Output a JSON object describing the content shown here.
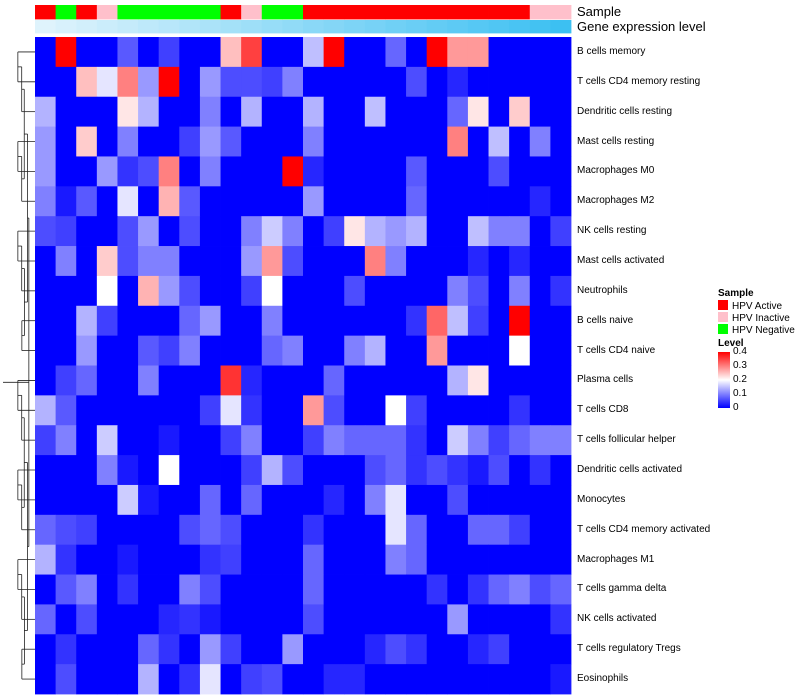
{
  "chart_data": {
    "type": "heatmap",
    "annotation_labels": [
      "Sample",
      "Gene expression level"
    ],
    "sample_groups": [
      "HPV Active",
      "HPV Negative",
      "HPV Active",
      "HPV Inactive",
      "HPV Negative",
      "HPV Negative",
      "HPV Negative",
      "HPV Negative",
      "HPV Negative",
      "HPV Active",
      "HPV Inactive",
      "HPV Negative",
      "HPV Negative",
      "HPV Active",
      "HPV Active",
      "HPV Active",
      "HPV Active",
      "HPV Active",
      "HPV Active",
      "HPV Active",
      "HPV Active",
      "HPV Active",
      "HPV Active",
      "HPV Active",
      "HPV Inactive",
      "HPV Inactive"
    ],
    "expression_level": [
      0.0,
      0.04,
      0.08,
      0.12,
      0.16,
      0.2,
      0.24,
      0.28,
      0.32,
      0.36,
      0.4,
      0.44,
      0.48,
      0.52,
      0.56,
      0.6,
      0.64,
      0.68,
      0.72,
      0.76,
      0.8,
      0.84,
      0.88,
      0.92,
      0.96,
      1.0
    ],
    "rows": [
      "B cells memory",
      "T cells CD4 memory resting",
      "Dendritic cells resting",
      "Mast cells resting",
      "Macrophages M0",
      "Macrophages M2",
      "NK cells resting",
      "Mast cells activated",
      "Neutrophils",
      "B cells naive",
      "T cells CD4 naive",
      "Plasma cells",
      "T cells CD8",
      "T cells follicular helper",
      "Dendritic cells activated",
      "Monocytes",
      "T cells CD4 memory activated",
      "Macrophages M1",
      "T cells gamma delta",
      "NK cells activated",
      "T cells regulatory  Tregs",
      "Eosinophils"
    ],
    "values": [
      [
        0.0,
        0.4,
        0.0,
        0.0,
        0.07,
        0.0,
        0.05,
        0.0,
        0.0,
        0.25,
        0.35,
        0.0,
        0.0,
        0.15,
        0.4,
        0.0,
        0.0,
        0.08,
        0.0,
        0.4,
        0.28,
        0.28,
        0.0,
        0.0,
        0.0,
        0.0
      ],
      [
        0.0,
        0.0,
        0.25,
        0.18,
        0.3,
        0.12,
        0.4,
        0.0,
        0.12,
        0.06,
        0.06,
        0.05,
        0.1,
        0.0,
        0.0,
        0.0,
        0.0,
        0.0,
        0.06,
        0.0,
        0.03,
        0.0,
        0.0,
        0.0,
        0.0,
        0.0
      ],
      [
        0.14,
        0.0,
        0.0,
        0.0,
        0.22,
        0.14,
        0.0,
        0.0,
        0.1,
        0.0,
        0.14,
        0.0,
        0.0,
        0.14,
        0.0,
        0.0,
        0.15,
        0.0,
        0.0,
        0.0,
        0.08,
        0.22,
        0.0,
        0.24,
        0.0,
        0.0
      ],
      [
        0.12,
        0.0,
        0.24,
        0.0,
        0.1,
        0.0,
        0.0,
        0.05,
        0.12,
        0.07,
        0.0,
        0.0,
        0.0,
        0.1,
        0.0,
        0.0,
        0.0,
        0.0,
        0.0,
        0.0,
        0.3,
        0.0,
        0.15,
        0.0,
        0.1,
        0.0
      ],
      [
        0.12,
        0.0,
        0.0,
        0.12,
        0.04,
        0.06,
        0.3,
        0.0,
        0.1,
        0.0,
        0.0,
        0.0,
        0.4,
        0.03,
        0.0,
        0.0,
        0.0,
        0.0,
        0.07,
        0.0,
        0.0,
        0.0,
        0.06,
        0.0,
        0.0,
        0.0
      ],
      [
        0.1,
        0.02,
        0.07,
        0.0,
        0.18,
        0.0,
        0.26,
        0.07,
        0.0,
        0.0,
        0.0,
        0.0,
        0.0,
        0.12,
        0.0,
        0.0,
        0.0,
        0.0,
        0.08,
        0.0,
        0.0,
        0.0,
        0.0,
        0.0,
        0.03,
        0.0
      ],
      [
        0.06,
        0.05,
        0.0,
        0.0,
        0.06,
        0.12,
        0.0,
        0.06,
        0.0,
        0.0,
        0.1,
        0.16,
        0.1,
        0.0,
        0.05,
        0.22,
        0.14,
        0.12,
        0.14,
        0.0,
        0.0,
        0.15,
        0.1,
        0.1,
        0.0,
        0.05
      ],
      [
        0.0,
        0.1,
        0.0,
        0.24,
        0.06,
        0.1,
        0.1,
        0.0,
        0.0,
        0.0,
        0.12,
        0.28,
        0.06,
        0.0,
        0.0,
        0.0,
        0.3,
        0.1,
        0.0,
        0.0,
        0.0,
        0.03,
        0.0,
        0.03,
        0.0,
        0.0
      ],
      [
        0.0,
        0.0,
        0.0,
        0.2,
        0.0,
        0.26,
        0.12,
        0.06,
        0.0,
        0.0,
        0.05,
        0.2,
        0.0,
        0.0,
        0.0,
        0.06,
        0.0,
        0.0,
        0.0,
        0.0,
        0.1,
        0.06,
        0.0,
        0.1,
        0.0,
        0.04
      ],
      [
        0.0,
        0.0,
        0.14,
        0.05,
        0.0,
        0.0,
        0.0,
        0.08,
        0.12,
        0.0,
        0.0,
        0.1,
        0.0,
        0.0,
        0.0,
        0.0,
        0.0,
        0.0,
        0.04,
        0.32,
        0.15,
        0.05,
        0.0,
        0.4,
        0.0,
        0.0
      ],
      [
        0.0,
        0.0,
        0.12,
        0.0,
        0.0,
        0.07,
        0.05,
        0.1,
        0.0,
        0.0,
        0.0,
        0.08,
        0.1,
        0.0,
        0.0,
        0.1,
        0.14,
        0.0,
        0.0,
        0.28,
        0.0,
        0.0,
        0.0,
        0.2,
        0.0,
        0.0
      ],
      [
        0.0,
        0.05,
        0.08,
        0.0,
        0.0,
        0.1,
        0.0,
        0.0,
        0.0,
        0.36,
        0.03,
        0.0,
        0.0,
        0.0,
        0.08,
        0.0,
        0.0,
        0.0,
        0.0,
        0.0,
        0.14,
        0.22,
        0.0,
        0.0,
        0.0,
        0.0
      ],
      [
        0.14,
        0.07,
        0.0,
        0.0,
        0.0,
        0.0,
        0.0,
        0.0,
        0.05,
        0.18,
        0.04,
        0.0,
        0.0,
        0.28,
        0.06,
        0.0,
        0.0,
        0.2,
        0.05,
        0.0,
        0.0,
        0.0,
        0.0,
        0.04,
        0.0,
        0.0
      ],
      [
        0.05,
        0.1,
        0.0,
        0.16,
        0.0,
        0.0,
        0.02,
        0.0,
        0.0,
        0.05,
        0.1,
        0.0,
        0.0,
        0.05,
        0.1,
        0.08,
        0.08,
        0.08,
        0.04,
        0.0,
        0.16,
        0.1,
        0.05,
        0.08,
        0.1,
        0.1
      ],
      [
        0.0,
        0.0,
        0.0,
        0.1,
        0.02,
        0.0,
        0.2,
        0.0,
        0.0,
        0.0,
        0.05,
        0.14,
        0.06,
        0.0,
        0.0,
        0.0,
        0.06,
        0.08,
        0.04,
        0.06,
        0.04,
        0.02,
        0.06,
        0.0,
        0.04,
        0.0
      ],
      [
        0.0,
        0.0,
        0.0,
        0.0,
        0.16,
        0.02,
        0.0,
        0.0,
        0.08,
        0.0,
        0.08,
        0.0,
        0.0,
        0.0,
        0.03,
        0.0,
        0.1,
        0.18,
        0.0,
        0.0,
        0.06,
        0.0,
        0.0,
        0.0,
        0.0,
        0.0
      ],
      [
        0.08,
        0.06,
        0.05,
        0.0,
        0.0,
        0.0,
        0.0,
        0.06,
        0.08,
        0.06,
        0.0,
        0.0,
        0.0,
        0.04,
        0.0,
        0.0,
        0.0,
        0.18,
        0.08,
        0.0,
        0.0,
        0.08,
        0.08,
        0.05,
        0.0,
        0.0
      ],
      [
        0.14,
        0.04,
        0.0,
        0.0,
        0.02,
        0.0,
        0.0,
        0.0,
        0.04,
        0.05,
        0.0,
        0.0,
        0.0,
        0.08,
        0.0,
        0.0,
        0.0,
        0.1,
        0.08,
        0.0,
        0.0,
        0.0,
        0.0,
        0.0,
        0.0,
        0.0
      ],
      [
        0.0,
        0.07,
        0.1,
        0.0,
        0.04,
        0.0,
        0.0,
        0.1,
        0.06,
        0.0,
        0.0,
        0.0,
        0.0,
        0.08,
        0.0,
        0.0,
        0.0,
        0.0,
        0.0,
        0.04,
        0.0,
        0.04,
        0.08,
        0.1,
        0.06,
        0.08
      ],
      [
        0.08,
        0.0,
        0.06,
        0.0,
        0.0,
        0.0,
        0.03,
        0.04,
        0.02,
        0.0,
        0.0,
        0.0,
        0.0,
        0.06,
        0.0,
        0.0,
        0.0,
        0.0,
        0.0,
        0.0,
        0.12,
        0.0,
        0.0,
        0.0,
        0.0,
        0.04
      ],
      [
        0.0,
        0.04,
        0.0,
        0.0,
        0.0,
        0.08,
        0.04,
        0.0,
        0.12,
        0.05,
        0.0,
        0.0,
        0.12,
        0.0,
        0.0,
        0.0,
        0.03,
        0.06,
        0.04,
        0.0,
        0.0,
        0.03,
        0.05,
        0.0,
        0.0,
        0.0
      ],
      [
        0.0,
        0.06,
        0.0,
        0.0,
        0.0,
        0.14,
        0.0,
        0.04,
        0.18,
        0.0,
        0.05,
        0.06,
        0.0,
        0.0,
        0.03,
        0.03,
        0.0,
        0.0,
        0.0,
        0.0,
        0.0,
        0.0,
        0.0,
        0.0,
        0.0,
        0.02
      ]
    ],
    "color_scale": {
      "min": 0,
      "max": 0.4,
      "low": "#0000ff",
      "mid": "#ffffff",
      "high": "#ff0000",
      "midpoint": 0.2
    },
    "group_colors": {
      "HPV Active": "#ff0000",
      "HPV Inactive": "#ffc0cb",
      "HPV Negative": "#00ff00"
    },
    "expression_color_range": [
      "#dff3fc",
      "#3cc0f2"
    ],
    "legend": {
      "sample_title": "Sample",
      "sample_items": [
        "HPV Active",
        "HPV Inactive",
        "HPV Negative"
      ],
      "level_title": "Level",
      "level_ticks": [
        0.4,
        0.3,
        0.2,
        0.1,
        0
      ],
      "level_tick_labels": [
        "0.4",
        "0.3",
        "0.2",
        "0.1",
        "0"
      ]
    }
  }
}
